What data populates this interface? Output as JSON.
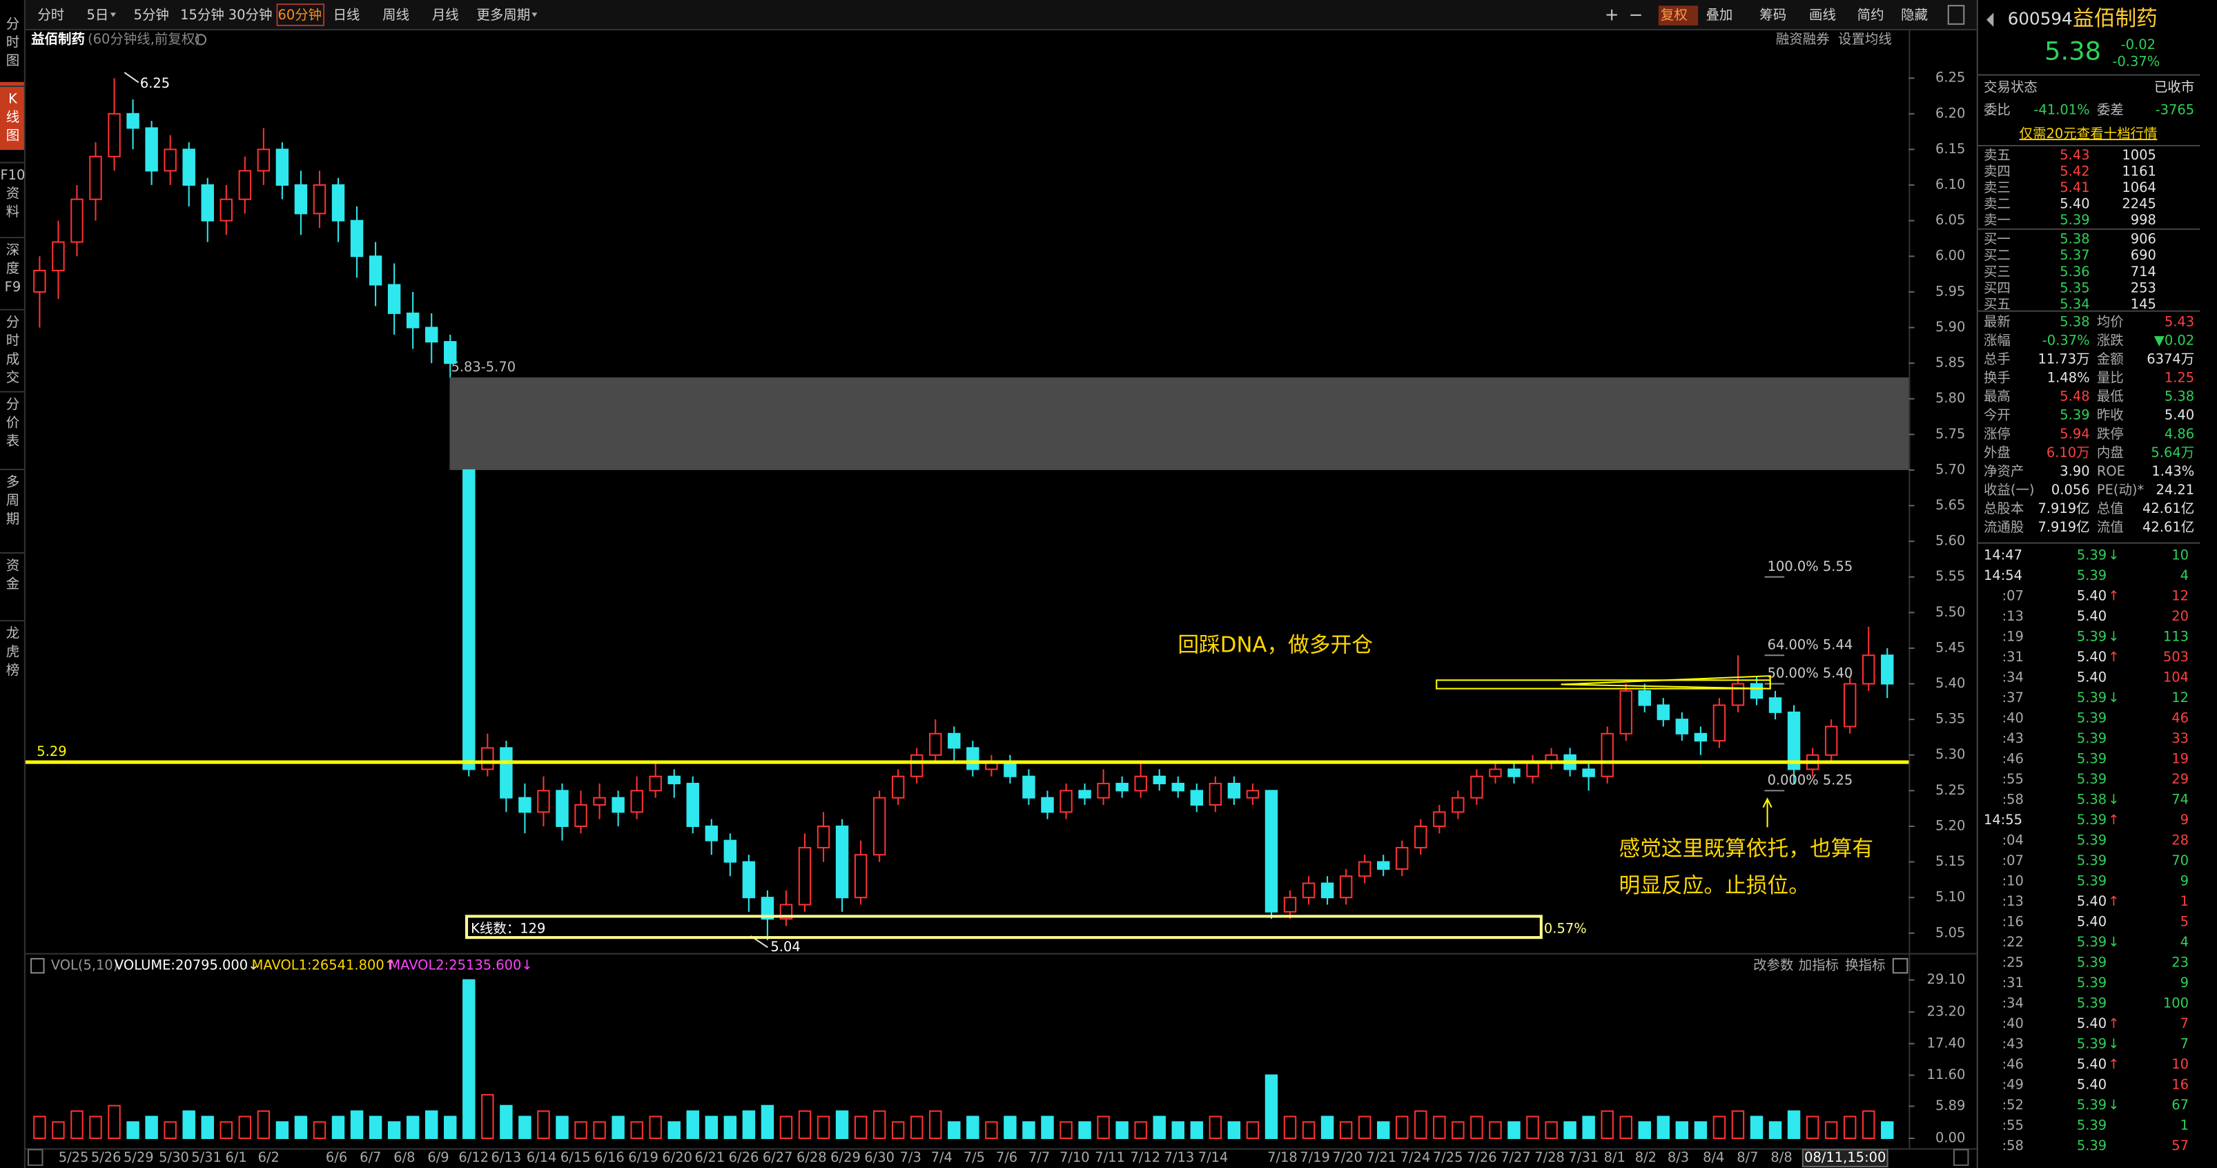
{
  "toolbar": {
    "periods": [
      "分时",
      "5日",
      "5分钟",
      "15分钟",
      "30分钟",
      "60分钟",
      "日线",
      "周线",
      "月线",
      "更多周期"
    ],
    "tools": [
      "复权",
      "叠加",
      "筹码",
      "画线",
      "简约",
      "隐藏"
    ]
  },
  "sidebar": [
    "分时图",
    "K线图",
    "F10资料",
    "深度F9",
    "分时成交",
    "分价表",
    "多周期",
    "资金",
    "龙虎榜"
  ],
  "chart_header": {
    "name": "益佰制药",
    "desc": "(60分钟线,前复权)",
    "links": [
      "融资融券",
      "设置均线"
    ]
  },
  "chart_data": {
    "type": "candlestick",
    "ylim": [
      5.03,
      6.32
    ],
    "yticks": [
      6.25,
      {
        "value": 6.2,
        "label": "6.20"
      },
      6.15,
      {
        "value": 6.1,
        "label": "6.10"
      },
      6.05,
      {
        "value": 6,
        "label": "6.00"
      },
      5.95,
      {
        "value": 5.9,
        "label": "5.90"
      },
      5.85,
      {
        "value": 5.8,
        "label": "5.80"
      },
      5.75,
      {
        "value": 5.7,
        "label": "5.70"
      },
      5.65,
      {
        "value": 5.6,
        "label": "5.60"
      },
      5.55,
      {
        "value": 5.5,
        "label": "5.50"
      },
      5.45,
      {
        "value": 5.4,
        "label": "5.40"
      },
      5.35,
      {
        "value": 5.3,
        "label": "5.30"
      },
      5.25,
      {
        "value": 5.2,
        "label": "5.20"
      },
      5.15,
      {
        "value": 5.1,
        "label": "5.10"
      },
      5.05
    ],
    "colors": {
      "up": "#ff3232",
      "down": "#2ee8ee"
    },
    "candles": [
      [
        5.95,
        6.0,
        5.9,
        5.98
      ],
      [
        5.98,
        6.05,
        5.94,
        6.02
      ],
      [
        6.02,
        6.1,
        6.0,
        6.08
      ],
      [
        6.08,
        6.16,
        6.05,
        6.14
      ],
      [
        6.14,
        6.25,
        6.12,
        6.2
      ],
      [
        6.2,
        6.22,
        6.15,
        6.18
      ],
      [
        6.18,
        6.19,
        6.1,
        6.12
      ],
      [
        6.12,
        6.17,
        6.1,
        6.15
      ],
      [
        6.15,
        6.16,
        6.07,
        6.1
      ],
      [
        6.1,
        6.11,
        6.02,
        6.05
      ],
      [
        6.05,
        6.1,
        6.03,
        6.08
      ],
      [
        6.08,
        6.14,
        6.06,
        6.12
      ],
      [
        6.12,
        6.18,
        6.1,
        6.15
      ],
      [
        6.15,
        6.16,
        6.08,
        6.1
      ],
      [
        6.1,
        6.12,
        6.03,
        6.06
      ],
      [
        6.06,
        6.12,
        6.04,
        6.1
      ],
      [
        6.1,
        6.11,
        6.02,
        6.05
      ],
      [
        6.05,
        6.07,
        5.97,
        6.0
      ],
      [
        6.0,
        6.02,
        5.93,
        5.96
      ],
      [
        5.96,
        5.99,
        5.89,
        5.92
      ],
      [
        5.92,
        5.95,
        5.87,
        5.9
      ],
      [
        5.9,
        5.92,
        5.85,
        5.88
      ],
      [
        5.88,
        5.89,
        5.83,
        5.85
      ],
      [
        5.7,
        5.7,
        5.27,
        5.28
      ],
      [
        5.28,
        5.33,
        5.27,
        5.31
      ],
      [
        5.31,
        5.32,
        5.22,
        5.24
      ],
      [
        5.24,
        5.26,
        5.19,
        5.22
      ],
      [
        5.22,
        5.27,
        5.2,
        5.25
      ],
      [
        5.25,
        5.26,
        5.18,
        5.2
      ],
      [
        5.2,
        5.25,
        5.19,
        5.23
      ],
      [
        5.23,
        5.26,
        5.21,
        5.24
      ],
      [
        5.24,
        5.25,
        5.2,
        5.22
      ],
      [
        5.22,
        5.27,
        5.21,
        5.25
      ],
      [
        5.25,
        5.29,
        5.24,
        5.27
      ],
      [
        5.27,
        5.28,
        5.24,
        5.26
      ],
      [
        5.26,
        5.27,
        5.19,
        5.2
      ],
      [
        5.2,
        5.21,
        5.16,
        5.18
      ],
      [
        5.18,
        5.19,
        5.13,
        5.15
      ],
      [
        5.15,
        5.16,
        5.08,
        5.1
      ],
      [
        5.1,
        5.11,
        5.04,
        5.07
      ],
      [
        5.07,
        5.11,
        5.06,
        5.09
      ],
      [
        5.09,
        5.19,
        5.08,
        5.17
      ],
      [
        5.17,
        5.22,
        5.15,
        5.2
      ],
      [
        5.2,
        5.21,
        5.08,
        5.1
      ],
      [
        5.1,
        5.18,
        5.09,
        5.16
      ],
      [
        5.16,
        5.25,
        5.15,
        5.24
      ],
      [
        5.24,
        5.28,
        5.23,
        5.27
      ],
      [
        5.27,
        5.31,
        5.26,
        5.3
      ],
      [
        5.3,
        5.35,
        5.29,
        5.33
      ],
      [
        5.33,
        5.34,
        5.29,
        5.31
      ],
      [
        5.31,
        5.32,
        5.27,
        5.28
      ],
      [
        5.28,
        5.3,
        5.27,
        5.29
      ],
      [
        5.29,
        5.3,
        5.26,
        5.27
      ],
      [
        5.27,
        5.28,
        5.23,
        5.24
      ],
      [
        5.24,
        5.25,
        5.21,
        5.22
      ],
      [
        5.22,
        5.26,
        5.21,
        5.25
      ],
      [
        5.25,
        5.26,
        5.23,
        5.24
      ],
      [
        5.24,
        5.28,
        5.23,
        5.26
      ],
      [
        5.26,
        5.27,
        5.24,
        5.25
      ],
      [
        5.25,
        5.29,
        5.24,
        5.27
      ],
      [
        5.27,
        5.28,
        5.25,
        5.26
      ],
      [
        5.26,
        5.27,
        5.24,
        5.25
      ],
      [
        5.25,
        5.26,
        5.22,
        5.23
      ],
      [
        5.23,
        5.27,
        5.22,
        5.26
      ],
      [
        5.26,
        5.27,
        5.23,
        5.24
      ],
      [
        5.24,
        5.26,
        5.23,
        5.25
      ],
      [
        5.25,
        5.25,
        5.07,
        5.08
      ],
      [
        5.08,
        5.11,
        5.07,
        5.1
      ],
      [
        5.1,
        5.13,
        5.09,
        5.12
      ],
      [
        5.12,
        5.13,
        5.09,
        5.1
      ],
      [
        5.1,
        5.14,
        5.09,
        5.13
      ],
      [
        5.13,
        5.16,
        5.12,
        5.15
      ],
      [
        5.15,
        5.16,
        5.13,
        5.14
      ],
      [
        5.14,
        5.18,
        5.13,
        5.17
      ],
      [
        5.17,
        5.21,
        5.16,
        5.2
      ],
      [
        5.2,
        5.23,
        5.19,
        5.22
      ],
      [
        5.22,
        5.25,
        5.21,
        5.24
      ],
      [
        5.24,
        5.28,
        5.23,
        5.27
      ],
      [
        5.27,
        5.29,
        5.26,
        5.28
      ],
      [
        5.28,
        5.29,
        5.26,
        5.27
      ],
      [
        5.27,
        5.3,
        5.26,
        5.29
      ],
      [
        5.29,
        5.31,
        5.28,
        5.3
      ],
      [
        5.3,
        5.31,
        5.27,
        5.28
      ],
      [
        5.28,
        5.29,
        5.25,
        5.27
      ],
      [
        5.27,
        5.34,
        5.26,
        5.33
      ],
      [
        5.33,
        5.4,
        5.32,
        5.39
      ],
      [
        5.39,
        5.4,
        5.36,
        5.37
      ],
      [
        5.37,
        5.38,
        5.34,
        5.35
      ],
      [
        5.35,
        5.36,
        5.32,
        5.33
      ],
      [
        5.33,
        5.34,
        5.3,
        5.32
      ],
      [
        5.32,
        5.38,
        5.31,
        5.37
      ],
      [
        5.37,
        5.44,
        5.36,
        5.4
      ],
      [
        5.4,
        5.41,
        5.37,
        5.38
      ],
      [
        5.38,
        5.39,
        5.35,
        5.36
      ],
      [
        5.36,
        5.37,
        5.26,
        5.28
      ],
      [
        5.28,
        5.31,
        5.27,
        5.3
      ],
      [
        5.3,
        5.35,
        5.29,
        5.34
      ],
      [
        5.34,
        5.41,
        5.33,
        5.4
      ],
      [
        5.4,
        5.48,
        5.39,
        5.44
      ],
      [
        5.44,
        5.45,
        5.38,
        5.4
      ]
    ],
    "volumes": [
      4,
      3,
      5,
      4,
      6,
      3,
      4,
      3,
      5,
      4,
      3,
      4,
      5,
      3,
      4,
      3,
      4,
      5,
      4,
      3,
      4,
      5,
      4,
      29.1,
      8,
      6,
      4,
      5,
      4,
      3,
      3,
      4,
      3,
      4,
      3,
      5,
      4,
      4,
      5,
      6,
      4,
      5,
      4,
      5,
      4,
      5,
      3,
      4,
      5,
      3,
      4,
      3,
      4,
      3,
      4,
      3,
      3,
      4,
      3,
      3,
      4,
      3,
      3,
      4,
      3,
      3,
      11.6,
      4,
      3,
      4,
      3,
      4,
      3,
      4,
      5,
      4,
      3,
      4,
      3,
      3,
      4,
      3,
      3,
      4,
      5,
      4,
      3,
      4,
      3,
      3,
      4,
      5,
      4,
      3,
      5,
      4,
      3,
      4,
      5,
      3
    ],
    "vlim": [
      0,
      29.1
    ],
    "vticks": [
      {
        "value": 29.1,
        "label": "29.10"
      },
      {
        "value": 23.2,
        "label": "23.20"
      },
      {
        "value": 17.4,
        "label": "17.40"
      },
      {
        "value": 11.6,
        "label": "11.60"
      },
      5.89,
      {
        "value": 0,
        "label": "0.00"
      }
    ],
    "dates": [
      "5/25",
      "5/26",
      "5/29",
      "5/30",
      "5/31",
      "6/1",
      "6/2",
      "6/6",
      "6/7",
      "6/8",
      "6/9",
      "6/12",
      "6/13",
      "6/14",
      "6/15",
      "6/16",
      "6/19",
      "6/20",
      "6/21",
      "6/26",
      "6/27",
      "6/28",
      "6/29",
      "6/30",
      "7/3",
      "7/4",
      "7/5",
      "7/6",
      "7/7",
      "7/10",
      "7/11",
      "7/12",
      "7/13",
      "7/14",
      "7/18",
      "7/19",
      "7/20",
      "7/21",
      "7/24",
      "7/25",
      "7/26",
      "7/27",
      "7/28",
      "7/31",
      "8/1",
      "8/2",
      "8/3",
      "8/4",
      "8/7",
      "8/8"
    ],
    "cursor_date": "08/11,15:00",
    "high_mark": 6.25,
    "low_mark": 5.04,
    "zone": {
      "label": "5.83-5.70",
      "top": 5.83,
      "bottom": 5.7
    },
    "support": 5.29,
    "fib": [
      {
        "label": "100.0% 5.55",
        "value": 5.55
      },
      {
        "label": "64.00% 5.44",
        "value": 5.44
      },
      {
        "label": "50.00% 5.40",
        "value": 5.4
      },
      {
        "label": "0.000% 5.25",
        "value": 5.25
      }
    ],
    "notes": [
      "回踩DNA，做多开仓",
      "感觉这里既算依托，也算有",
      "明显反应。止损位。"
    ],
    "kcount": "K线数：129",
    "range_pct": "0.57%"
  },
  "indicator": {
    "title": "VOL(5,10)",
    "items": [
      "VOLUME:20795.000↓",
      "MAVOL1:26541.800↑",
      "MAVOL2:25135.600↓"
    ],
    "buttons": [
      "改参数",
      "加指标",
      "换指标"
    ]
  },
  "quote": {
    "colors": {
      "up": "#ff4040",
      "down": "#2ed158",
      "flat": "#e6e6e6"
    },
    "code": "600594",
    "name": "益佰制药",
    "price": "5.38",
    "change": "-0.02",
    "pct": "-0.37%",
    "status_label": "交易状态",
    "status": "已收市",
    "ratio": {
      "l": "委比",
      "v": "-41.01%",
      "l2": "委差",
      "v2": "-3765"
    },
    "promo": "仅需20元查看十档行情",
    "book": [
      {
        "l": "卖五",
        "p": "5.43",
        "c": "up",
        "v": "1005"
      },
      {
        "l": "卖四",
        "p": "5.42",
        "c": "up",
        "v": "1161"
      },
      {
        "l": "卖三",
        "p": "5.41",
        "c": "up",
        "v": "1064"
      },
      {
        "l": "卖二",
        "p": "5.40",
        "c": "flat",
        "v": "2245"
      },
      {
        "l": "卖一",
        "p": "5.39",
        "c": "down",
        "v": "998"
      },
      {
        "l": "买一",
        "p": "5.38",
        "c": "down",
        "v": "906"
      },
      {
        "l": "买二",
        "p": "5.37",
        "c": "down",
        "v": "690"
      },
      {
        "l": "买三",
        "p": "5.36",
        "c": "down",
        "v": "714"
      },
      {
        "l": "买四",
        "p": "5.35",
        "c": "down",
        "v": "253"
      },
      {
        "l": "买五",
        "p": "5.34",
        "c": "down",
        "v": "145"
      }
    ],
    "stats": [
      {
        "l": "最新",
        "v": "5.38",
        "c": "down",
        "l2": "均价",
        "v2": "5.43",
        "c2": "up"
      },
      {
        "l": "涨幅",
        "v": "-0.37%",
        "c": "down",
        "l2": "涨跌",
        "v2": "▼0.02",
        "c2": "down"
      },
      {
        "l": "总手",
        "v": "11.73万",
        "c": "flat",
        "l2": "金额",
        "v2": "6374万",
        "c2": "flat"
      },
      {
        "l": "换手",
        "v": "1.48%",
        "c": "flat",
        "l2": "量比",
        "v2": "1.25",
        "c2": "up"
      },
      {
        "l": "最高",
        "v": "5.48",
        "c": "up",
        "l2": "最低",
        "v2": "5.38",
        "c2": "down"
      },
      {
        "l": "今开",
        "v": "5.39",
        "c": "down",
        "l2": "昨收",
        "v2": "5.40",
        "c2": "flat"
      },
      {
        "l": "涨停",
        "v": "5.94",
        "c": "up",
        "l2": "跌停",
        "v2": "4.86",
        "c2": "down"
      },
      {
        "l": "外盘",
        "v": "6.10万",
        "c": "up",
        "l2": "内盘",
        "v2": "5.64万",
        "c2": "down"
      },
      {
        "l": "净资产",
        "v": "3.90",
        "c": "flat",
        "l2": "ROE",
        "v2": "1.43%",
        "c2": "flat"
      },
      {
        "l": "收益(一)",
        "v": "0.056",
        "c": "flat",
        "l2": "PE(动)*",
        "v2": "24.21",
        "c2": "flat"
      },
      {
        "l": "总股本",
        "v": "7.919亿",
        "c": "flat",
        "l2": "总值",
        "v2": "42.61亿",
        "c2": "flat"
      },
      {
        "l": "流通股",
        "v": "7.919亿",
        "c": "flat",
        "l2": "流值",
        "v2": "42.61亿",
        "c2": "flat"
      }
    ],
    "ticks": [
      {
        "t": "14:47",
        "p": "5.39",
        "c": "down",
        "a": "↓",
        "v": "10",
        "vc": "down"
      },
      {
        "t": "14:54",
        "p": "5.39",
        "c": "down",
        "v": "4",
        "vc": "down"
      },
      {
        "t": ":07",
        "p": "5.40",
        "c": "flat",
        "a": "↑",
        "v": "12",
        "vc": "up"
      },
      {
        "t": ":13",
        "p": "5.40",
        "c": "flat",
        "v": "20",
        "vc": "up"
      },
      {
        "t": ":19",
        "p": "5.39",
        "c": "down",
        "a": "↓",
        "v": "113",
        "vc": "down"
      },
      {
        "t": ":31",
        "p": "5.40",
        "c": "flat",
        "a": "↑",
        "v": "503",
        "vc": "up"
      },
      {
        "t": ":34",
        "p": "5.40",
        "c": "flat",
        "v": "104",
        "vc": "up"
      },
      {
        "t": ":37",
        "p": "5.39",
        "c": "down",
        "a": "↓",
        "v": "12",
        "vc": "down"
      },
      {
        "t": ":40",
        "p": "5.39",
        "c": "down",
        "v": "46",
        "vc": "up"
      },
      {
        "t": ":43",
        "p": "5.39",
        "c": "down",
        "v": "33",
        "vc": "up"
      },
      {
        "t": ":46",
        "p": "5.39",
        "c": "down",
        "v": "19",
        "vc": "up"
      },
      {
        "t": ":55",
        "p": "5.39",
        "c": "down",
        "v": "29",
        "vc": "up"
      },
      {
        "t": ":58",
        "p": "5.38",
        "c": "down",
        "a": "↓",
        "v": "74",
        "vc": "down"
      },
      {
        "t": "14:55",
        "p": "5.39",
        "c": "down",
        "a": "↑",
        "v": "9",
        "vc": "up"
      },
      {
        "t": ":04",
        "p": "5.39",
        "c": "down",
        "v": "28",
        "vc": "up"
      },
      {
        "t": ":07",
        "p": "5.39",
        "c": "down",
        "v": "70",
        "vc": "down"
      },
      {
        "t": ":10",
        "p": "5.39",
        "c": "down",
        "v": "9",
        "vc": "down"
      },
      {
        "t": ":13",
        "p": "5.40",
        "c": "flat",
        "a": "↑",
        "v": "1",
        "vc": "up"
      },
      {
        "t": ":16",
        "p": "5.40",
        "c": "flat",
        "v": "5",
        "vc": "up"
      },
      {
        "t": ":22",
        "p": "5.39",
        "c": "down",
        "a": "↓",
        "v": "4",
        "vc": "down"
      },
      {
        "t": ":25",
        "p": "5.39",
        "c": "down",
        "v": "23",
        "vc": "down"
      },
      {
        "t": ":31",
        "p": "5.39",
        "c": "down",
        "v": "9",
        "vc": "down"
      },
      {
        "t": ":34",
        "p": "5.39",
        "c": "down",
        "v": "100",
        "vc": "down"
      },
      {
        "t": ":40",
        "p": "5.40",
        "c": "flat",
        "a": "↑",
        "v": "7",
        "vc": "up"
      },
      {
        "t": ":43",
        "p": "5.39",
        "c": "down",
        "a": "↓",
        "v": "7",
        "vc": "down"
      },
      {
        "t": ":46",
        "p": "5.40",
        "c": "flat",
        "a": "↑",
        "v": "10",
        "vc": "up"
      },
      {
        "t": ":49",
        "p": "5.40",
        "c": "flat",
        "v": "16",
        "vc": "up"
      },
      {
        "t": ":52",
        "p": "5.39",
        "c": "down",
        "a": "↓",
        "v": "67",
        "vc": "down"
      },
      {
        "t": ":55",
        "p": "5.39",
        "c": "down",
        "v": "1",
        "vc": "down"
      },
      {
        "t": ":58",
        "p": "5.39",
        "c": "down",
        "v": "57",
        "vc": "up"
      }
    ]
  }
}
